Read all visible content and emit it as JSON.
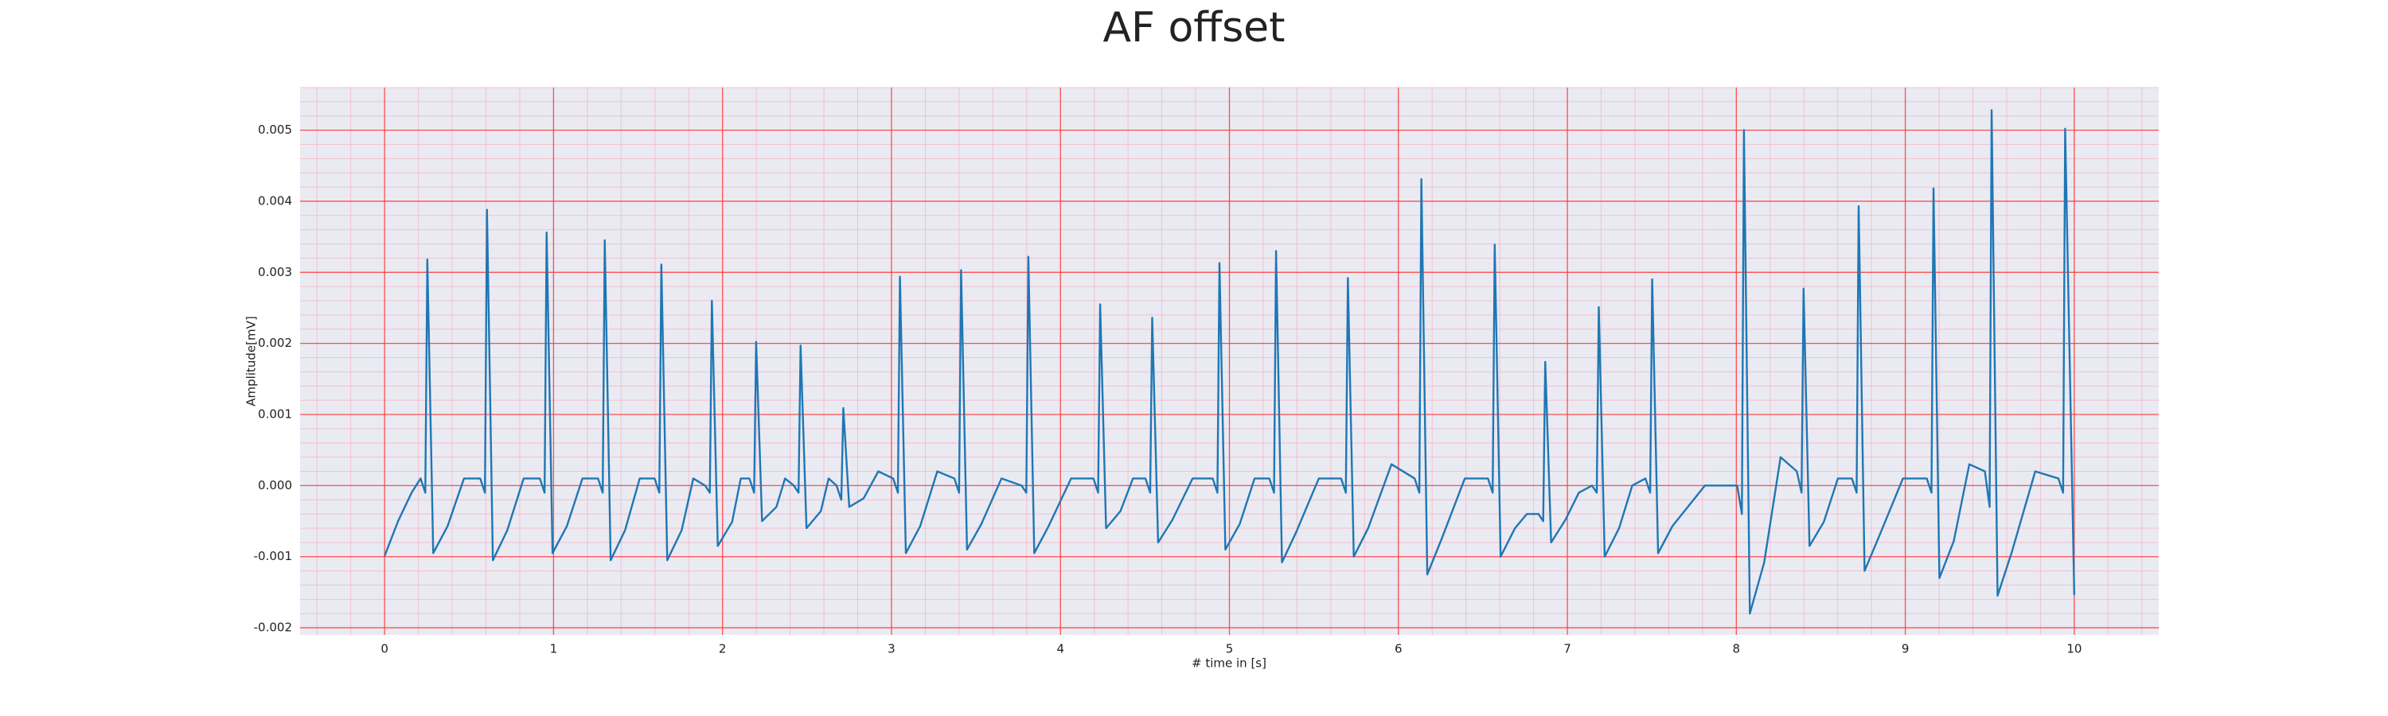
{
  "chart_data": {
    "type": "line",
    "title": "AF offset",
    "xlabel": "# time in [s]",
    "ylabel": "Amplitude[mV]",
    "color": "#1f77b4",
    "grid": true,
    "minor_grid": true,
    "xlim": [
      -0.5,
      10.5
    ],
    "xticks": [
      0,
      1,
      2,
      3,
      4,
      5,
      6,
      7,
      8,
      9,
      10
    ],
    "ylim": [
      -0.0021,
      0.0056
    ],
    "yticks": [
      -0.002,
      -0.001,
      {
        "value": 0,
        "label": "0.000"
      },
      0.001,
      0.002,
      0.003,
      0.004,
      0.005
    ],
    "x": [
      0,
      0.08,
      0.16,
      0.213,
      0.241,
      0.253,
      0.288,
      0.373,
      0.47,
      0.566,
      0.594,
      0.606,
      0.641,
      0.726,
      0.823,
      0.919,
      0.947,
      0.959,
      0.994,
      1.079,
      1.171,
      1.263,
      1.291,
      1.303,
      1.338,
      1.423,
      1.51,
      1.598,
      1.626,
      1.638,
      1.673,
      1.758,
      1.827,
      1.897,
      1.925,
      1.937,
      1.972,
      2.057,
      2.108,
      2.159,
      2.187,
      2.199,
      2.234,
      2.319,
      2.37,
      2.422,
      2.45,
      2.462,
      2.497,
      2.582,
      2.628,
      2.675,
      2.703,
      2.715,
      2.75,
      2.835,
      2.922,
      3.01,
      3.038,
      3.05,
      3.085,
      3.17,
      3.271,
      3.372,
      3.4,
      3.412,
      3.447,
      3.532,
      3.651,
      3.77,
      3.798,
      3.81,
      3.845,
      3.93,
      4.063,
      4.195,
      4.223,
      4.235,
      4.27,
      4.355,
      4.429,
      4.503,
      4.531,
      4.543,
      4.578,
      4.663,
      4.782,
      4.901,
      4.929,
      4.941,
      4.976,
      5.061,
      5.149,
      5.236,
      5.264,
      5.276,
      5.311,
      5.396,
      5.529,
      5.661,
      5.689,
      5.701,
      5.736,
      5.821,
      5.959,
      6.096,
      6.124,
      6.136,
      6.171,
      6.256,
      6.393,
      6.53,
      6.558,
      6.57,
      6.605,
      6.69,
      6.76,
      6.829,
      6.857,
      6.869,
      6.904,
      6.989,
      7.068,
      7.146,
      7.174,
      7.186,
      7.221,
      7.306,
      7.384,
      7.462,
      7.49,
      7.502,
      7.537,
      7.622,
      7.814,
      8.005,
      8.033,
      8.045,
      8.08,
      8.165,
      8.262,
      8.358,
      8.386,
      8.398,
      8.433,
      8.518,
      8.601,
      8.684,
      8.712,
      8.724,
      8.759,
      8.844,
      8.986,
      9.127,
      9.155,
      9.167,
      9.202,
      9.287,
      9.379,
      9.471,
      9.499,
      9.511,
      9.546,
      9.631,
      9.769,
      9.906,
      9.934,
      9.946,
      10.0
    ],
    "values": [
      -0.00099,
      -0.0005,
      -0.0001,
      0.0001,
      -0.0001,
      0.00318,
      -0.00095,
      -0.00057,
      0.0001,
      0.0001,
      -0.0001,
      0.00388,
      -0.00105,
      -0.00063,
      0.0001,
      0.0001,
      -0.0001,
      0.00356,
      -0.00095,
      -0.00057,
      0.0001,
      0.0001,
      -0.0001,
      0.00345,
      -0.00105,
      -0.00063,
      0.0001,
      0.0001,
      -0.0001,
      0.00311,
      -0.00105,
      -0.00063,
      0.0001,
      0,
      -0.0001,
      0.0026,
      -0.00085,
      -0.00051,
      0.0001,
      0.0001,
      -0.0001,
      0.00202,
      -0.0005,
      -0.0003,
      0.0001,
      0,
      -0.0001,
      0.00197,
      -0.0006,
      -0.00036,
      0.0001,
      0,
      -0.0002,
      0.00109,
      -0.0003,
      -0.00018,
      0.0002,
      0.0001,
      -0.0001,
      0.00294,
      -0.00095,
      -0.00057,
      0.0002,
      0.0001,
      -0.0001,
      0.00303,
      -0.0009,
      -0.00054,
      0.0001,
      0,
      -0.0001,
      0.00322,
      -0.00095,
      -0.00057,
      0.0001,
      0.0001,
      -0.0001,
      0.00255,
      -0.0006,
      -0.00036,
      0.0001,
      0.0001,
      -0.0001,
      0.00236,
      -0.0008,
      -0.00048,
      0.0001,
      0.0001,
      -0.0001,
      0.00313,
      -0.0009,
      -0.00054,
      0.0001,
      0.0001,
      -0.0001,
      0.0033,
      -0.00108,
      -0.00065,
      0.0001,
      0.0001,
      -0.0001,
      0.00292,
      -0.001,
      -0.0006,
      0.0003,
      0.0001,
      -0.0001,
      0.00431,
      -0.00125,
      -0.00075,
      0.0001,
      0.0001,
      -0.0001,
      0.00339,
      -0.001,
      -0.0006,
      -0.0004,
      -0.0004,
      -0.0005,
      0.00174,
      -0.0008,
      -0.00048,
      -0.0001,
      0,
      -0.0001,
      0.00251,
      -0.001,
      -0.0006,
      0,
      0.0001,
      -0.0001,
      0.0029,
      -0.00095,
      -0.00057,
      0,
      0,
      -0.0004,
      0.005,
      -0.0018,
      -0.00108,
      0.0004,
      0.0002,
      -0.0001,
      0.00277,
      -0.00085,
      -0.00051,
      0.0001,
      0.0001,
      -0.0001,
      0.00393,
      -0.0012,
      -0.00072,
      0.0001,
      0.0001,
      -0.0001,
      0.00418,
      -0.0013,
      -0.00078,
      0.0003,
      0.0002,
      -0.0003,
      0.00528,
      -0.00155,
      -0.00093,
      0.0002,
      0.0001,
      -0.0001,
      0.00502,
      -0.00154
    ]
  }
}
